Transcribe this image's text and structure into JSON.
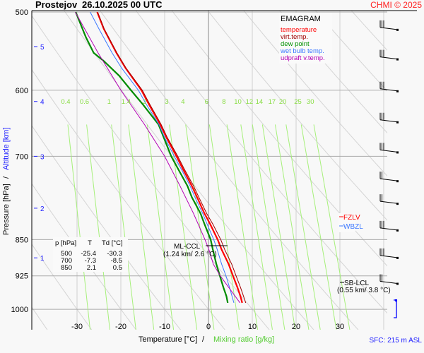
{
  "header": {
    "station": "Prostejov",
    "datetime": "26.10.2025 00 UTC",
    "copyright": "CHMI © 2025"
  },
  "chart_data": {
    "type": "line",
    "title": "EMAGRAM",
    "xlabel_temperature": "Temperature [°C]",
    "xlabel_separator": "/",
    "xlabel_mixing": "Mixing ratio [g/kg]",
    "ylabel_pressure": "Pressure [hPa]",
    "ylabel_separator": "/",
    "ylabel_altitude": "Altitude [km]",
    "xlim": [
      -30,
      40
    ],
    "ylim_hpa": [
      1049,
      500
    ],
    "y_scale": "log",
    "x_ticks": [
      "-30",
      "-20",
      "-10",
      "0",
      "10",
      "20",
      "30"
    ],
    "x_tick_values": [
      -30,
      -20,
      -10,
      0,
      10,
      20,
      30
    ],
    "pressure_ticks": [
      "500",
      "600",
      "700",
      "850",
      "925",
      "1000"
    ],
    "pressure_tick_values": [
      500,
      600,
      700,
      850,
      925,
      1000
    ],
    "altitude_ticks": [
      {
        "label": "1",
        "p": 887
      },
      {
        "label": "2",
        "p": 790
      },
      {
        "label": "3",
        "p": 700
      },
      {
        "label": "4",
        "p": 616
      },
      {
        "label": "5",
        "p": 542
      }
    ],
    "mixing_ratio_labels": [
      "0.4",
      "0.6",
      "1",
      "1.4",
      "2",
      "3",
      "4",
      "6",
      "8",
      "10",
      "12",
      "14",
      "17",
      "20",
      "25",
      "30"
    ],
    "mixing_ratio_values": [
      0.4,
      0.6,
      1,
      1.4,
      2,
      3,
      4,
      6,
      8,
      10,
      12,
      14,
      17,
      20,
      25,
      30
    ],
    "grid": true,
    "legend_placement": "top-right",
    "series": [
      {
        "name": "temperature",
        "color": "#ff0000",
        "points": [
          [
            985,
            7.7
          ],
          [
            970,
            7.3
          ],
          [
            950,
            6.6
          ],
          [
            925,
            5.6
          ],
          [
            900,
            4.6
          ],
          [
            870,
            3.0
          ],
          [
            850,
            2.1
          ],
          [
            820,
            0.4
          ],
          [
            800,
            -0.9
          ],
          [
            770,
            -2.6
          ],
          [
            750,
            -3.8
          ],
          [
            720,
            -5.9
          ],
          [
            700,
            -7.3
          ],
          [
            670,
            -9.6
          ],
          [
            650,
            -11.0
          ],
          [
            620,
            -13.6
          ],
          [
            600,
            -15.3
          ],
          [
            570,
            -18.9
          ],
          [
            550,
            -21.0
          ],
          [
            520,
            -23.9
          ],
          [
            500,
            -25.4
          ]
        ]
      },
      {
        "name": "virt.temp.",
        "color": "#a00000",
        "points": [
          [
            985,
            8.5
          ],
          [
            970,
            8.0
          ],
          [
            950,
            7.3
          ],
          [
            925,
            6.3
          ],
          [
            900,
            5.3
          ],
          [
            870,
            3.7
          ],
          [
            850,
            2.8
          ],
          [
            820,
            1.0
          ],
          [
            800,
            -0.4
          ],
          [
            770,
            -2.2
          ],
          [
            750,
            -3.4
          ],
          [
            720,
            -5.6
          ],
          [
            700,
            -7.0
          ],
          [
            670,
            -9.4
          ],
          [
            650,
            -10.8
          ],
          [
            620,
            -13.4
          ],
          [
            600,
            -15.1
          ],
          [
            570,
            -18.8
          ],
          [
            550,
            -20.9
          ],
          [
            520,
            -23.8
          ],
          [
            500,
            -25.3
          ]
        ]
      },
      {
        "name": "dew point",
        "color": "#008c00",
        "points": [
          [
            985,
            4.4
          ],
          [
            970,
            4.1
          ],
          [
            950,
            3.4
          ],
          [
            925,
            2.6
          ],
          [
            900,
            1.8
          ],
          [
            870,
            1.0
          ],
          [
            850,
            0.5
          ],
          [
            820,
            -0.9
          ],
          [
            800,
            -1.8
          ],
          [
            770,
            -3.8
          ],
          [
            750,
            -4.8
          ],
          [
            720,
            -7.0
          ],
          [
            700,
            -8.5
          ],
          [
            670,
            -10.2
          ],
          [
            650,
            -11.4
          ],
          [
            620,
            -15.0
          ],
          [
            600,
            -17.7
          ],
          [
            580,
            -20.4
          ],
          [
            560,
            -24.0
          ],
          [
            550,
            -26.2
          ],
          [
            530,
            -28.0
          ],
          [
            500,
            -30.3
          ]
        ]
      },
      {
        "name": "wet bulb temp.",
        "color": "#3c78ff",
        "points": [
          [
            985,
            5.8
          ],
          [
            950,
            4.8
          ],
          [
            925,
            4.0
          ],
          [
            900,
            3.0
          ],
          [
            870,
            2.0
          ],
          [
            850,
            1.2
          ],
          [
            820,
            -0.3
          ],
          [
            800,
            -1.3
          ],
          [
            770,
            -3.1
          ],
          [
            750,
            -4.2
          ],
          [
            720,
            -6.3
          ],
          [
            700,
            -7.8
          ],
          [
            670,
            -10.0
          ],
          [
            650,
            -11.3
          ],
          [
            620,
            -14.2
          ],
          [
            600,
            -16.0
          ],
          [
            570,
            -19.8
          ],
          [
            550,
            -22.0
          ],
          [
            520,
            -25.0
          ],
          [
            500,
            -27.0
          ]
        ]
      },
      {
        "name": "udpraft v.temp.",
        "color": "#b400b4",
        "points": [
          [
            985,
            7.2
          ],
          [
            950,
            4.6
          ],
          [
            925,
            2.7
          ],
          [
            900,
            1.1
          ],
          [
            870,
            0.1
          ],
          [
            850,
            -0.8
          ],
          [
            800,
            -3.4
          ],
          [
            750,
            -6.5
          ],
          [
            700,
            -10.0
          ],
          [
            650,
            -14.6
          ],
          [
            600,
            -20.0
          ],
          [
            550,
            -25.2
          ],
          [
            500,
            -30.4
          ]
        ]
      }
    ],
    "levels_table": {
      "headers": [
        "p [hPa]",
        "T",
        "Td [°C]"
      ],
      "rows": [
        [
          "500",
          "-25.4",
          "-30.3"
        ],
        [
          "700",
          "-7.3",
          "-8.5"
        ],
        [
          "850",
          "2.1",
          "0.5"
        ]
      ]
    },
    "annotations": {
      "ml_ccl_label": "ML-CCL",
      "ml_ccl_value": "(1.24 km/ 2.6 °C)",
      "ml_ccl_p": 858,
      "sb_lcl_label": "SB-LCL",
      "sb_lcl_value": "(0.55 km/ 3.8 °C)",
      "sb_lcl_p": 940,
      "fzlv_label": "FZLV",
      "fzlv_color": "#ff0000",
      "wbzl_label": "WBZL",
      "wbzl_color": "#3c78ff",
      "sfc_label": "SFC: 215 m ASL"
    },
    "wind_barbs": [
      {
        "p": 520,
        "full_barbs": 3
      },
      {
        "p": 557,
        "full_barbs": 3
      },
      {
        "p": 600,
        "full_barbs": 3
      },
      {
        "p": 645,
        "full_barbs": 3
      },
      {
        "p": 692,
        "full_barbs": 3
      },
      {
        "p": 740,
        "full_barbs": 2
      },
      {
        "p": 780,
        "full_barbs": 2
      },
      {
        "p": 830,
        "full_barbs": 3
      },
      {
        "p": 885,
        "full_barbs": 3
      },
      {
        "p": 940,
        "full_barbs": 2
      }
    ]
  }
}
